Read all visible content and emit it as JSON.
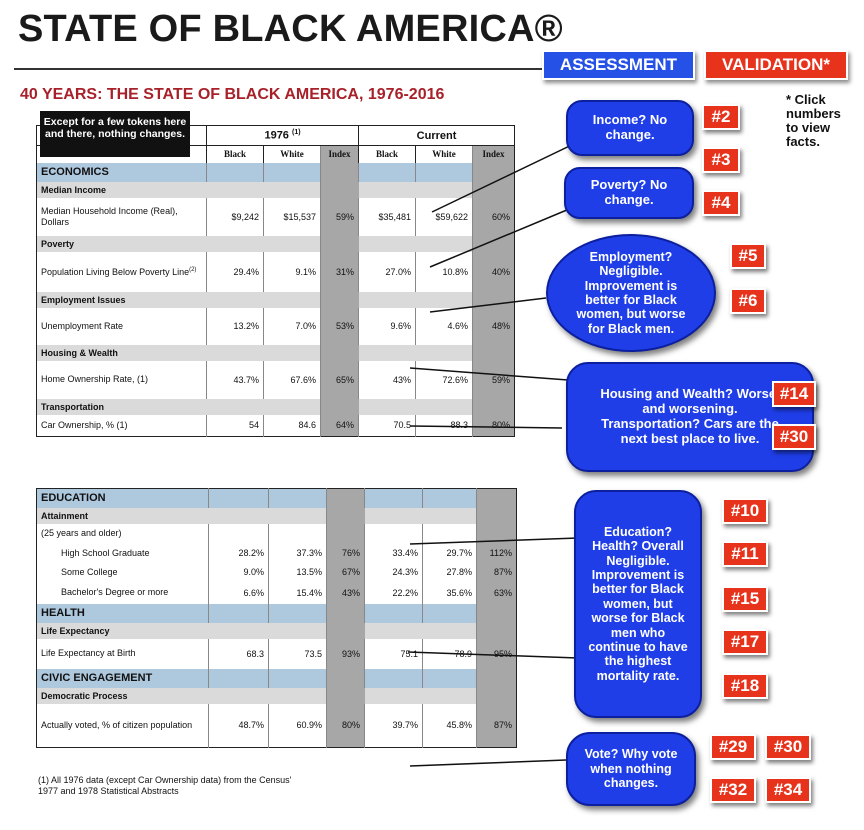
{
  "header": {
    "title": "STATE OF BLACK AMERICA®",
    "subtitle": "40 YEARS: THE STATE OF BLACK AMERICA, 1976-2016",
    "assessment_label": "ASSESSMENT",
    "validation_label": "VALIDATION*",
    "click_note": "* Click numbers to view facts."
  },
  "caption": "Except for a few tokens here and there, nothing changes.",
  "table1": {
    "group_1976": "1976",
    "group_1976_sup": "(1)",
    "group_current": "Current",
    "columns": [
      "Black",
      "White",
      "Index",
      "Black",
      "White",
      "Index"
    ],
    "section": "ECONOMICS",
    "rows": [
      {
        "subsection": "Median Income",
        "label": "Median Household Income (Real), Dollars",
        "values": [
          "$9,242",
          "$15,537",
          "59%",
          "$35,481",
          "$59,622",
          "60%"
        ]
      },
      {
        "subsection": "Poverty",
        "label": "Population Living Below Poverty Line",
        "label_sup": "(2)",
        "values": [
          "29.4%",
          "9.1%",
          "31%",
          "27.0%",
          "10.8%",
          "40%"
        ]
      },
      {
        "subsection": "Employment Issues",
        "label": "Unemployment Rate",
        "values": [
          "13.2%",
          "7.0%",
          "53%",
          "9.6%",
          "4.6%",
          "48%"
        ]
      },
      {
        "subsection": "Housing & Wealth",
        "label": "Home Ownership Rate, (1)",
        "values": [
          "43.7%",
          "67.6%",
          "65%",
          "43%",
          "72.6%",
          "59%"
        ]
      },
      {
        "subsection": "Transportation",
        "label": "Car Ownership, % (1)",
        "values": [
          "54",
          "84.6",
          "64%",
          "70.5",
          "88.3",
          "80%"
        ]
      }
    ]
  },
  "table2": {
    "education": {
      "section": "EDUCATION",
      "subsection": "Attainment",
      "note": "(25 years and older)",
      "rows": [
        {
          "label": "High School Graduate",
          "values": [
            "28.2%",
            "37.3%",
            "76%",
            "33.4%",
            "29.7%",
            "112%"
          ]
        },
        {
          "label": "Some College",
          "values": [
            "9.0%",
            "13.5%",
            "67%",
            "24.3%",
            "27.8%",
            "87%"
          ]
        },
        {
          "label": "Bachelor's Degree or more",
          "values": [
            "6.6%",
            "15.4%",
            "43%",
            "22.2%",
            "35.6%",
            "63%"
          ]
        }
      ]
    },
    "health": {
      "section": "HEALTH",
      "subsection": "Life Expectancy",
      "rows": [
        {
          "label": "Life Expectancy at Birth",
          "values": [
            "68.3",
            "73.5",
            "93%",
            "75.1",
            "78.9",
            "95%"
          ]
        }
      ]
    },
    "civic": {
      "section": "CIVIC ENGAGEMENT",
      "subsection": "Democratic Process",
      "rows": [
        {
          "label": "Actually voted, % of citizen population",
          "values": [
            "48.7%",
            "60.9%",
            "80%",
            "39.7%",
            "45.8%",
            "87%"
          ]
        }
      ]
    }
  },
  "footnote": "(1) All 1976 data (except Car Ownership data) from the Census' 1977 and 1978 Statistical Abstracts",
  "bubbles": {
    "income": "Income? No change.",
    "poverty": "Poverty? No change.",
    "employment": "Employment? Negligible. Improvement is better for Black women, but worse for Black men.",
    "housing": "Housing and Wealth? Worse, and worsening. Transportation? Cars are the next best place to live.",
    "education": "Education? Health? Overall Negligible. Improvement is better for Black women, but worse for Black men who continue to have the highest mortality rate.",
    "vote": "Vote? Why vote when nothing changes."
  },
  "validation_numbers": {
    "n2": "#2",
    "n3": "#3",
    "n4": "#4",
    "n5": "#5",
    "n6": "#6",
    "n14": "#14",
    "n30a": "#30",
    "n10": "#10",
    "n11": "#11",
    "n15": "#15",
    "n17": "#17",
    "n18": "#18",
    "n29": "#29",
    "n30b": "#30",
    "n32": "#32",
    "n34": "#34"
  },
  "colors": {
    "bubble_blue": "#1f3ee8",
    "button_red": "#e8331c",
    "assessment_blue": "#2651e6",
    "subtitle_red": "#a8212a",
    "section_blue": "#aec8de",
    "index_gray": "#a7a7a7"
  }
}
